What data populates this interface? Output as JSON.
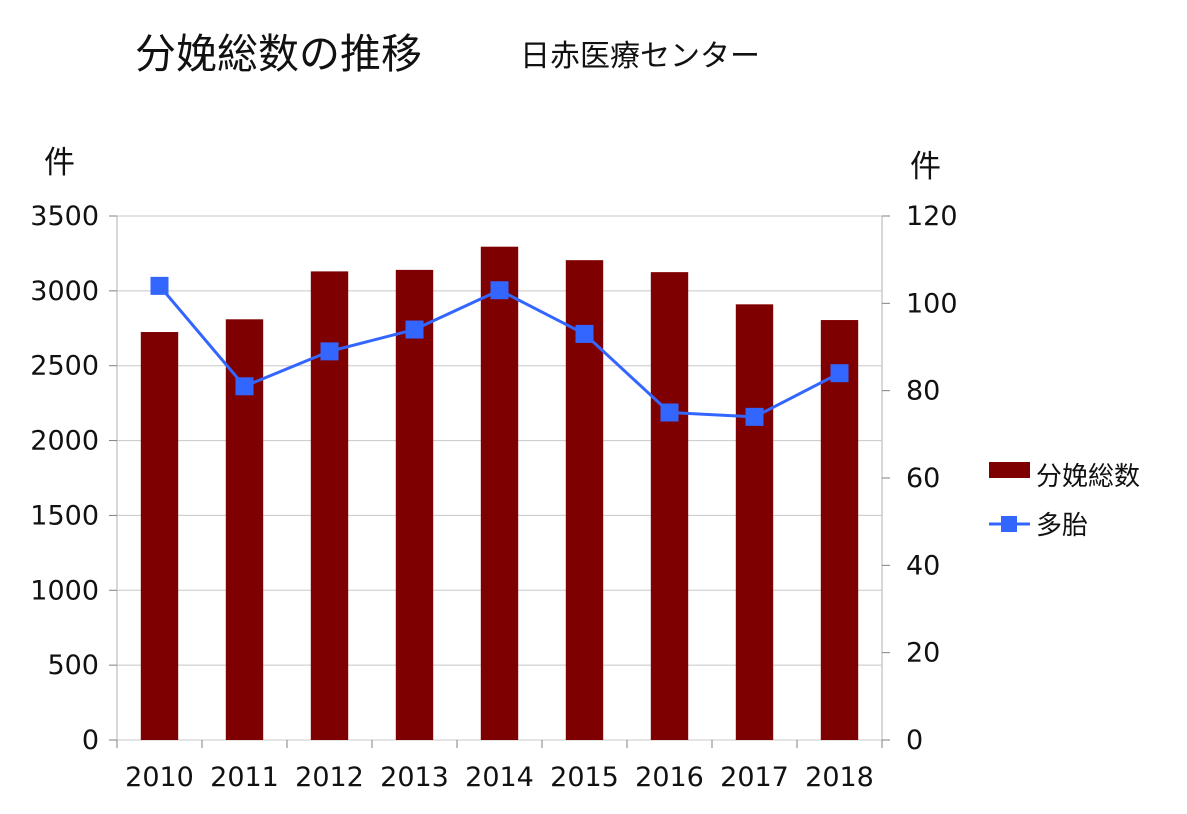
{
  "chart_data": {
    "type": "bar",
    "title": "分娩総数の推移",
    "subtitle": "日赤医療センター",
    "categories": [
      "2010",
      "2011",
      "2012",
      "2013",
      "2014",
      "2015",
      "2016",
      "2017",
      "2018"
    ],
    "series": [
      {
        "name": "分娩総数",
        "type": "bar",
        "axis": "left",
        "color": "#7f0000",
        "values": [
          2725,
          2810,
          3130,
          3140,
          3295,
          3205,
          3125,
          2910,
          2805
        ]
      },
      {
        "name": "多胎",
        "type": "line",
        "axis": "right",
        "color": "#3366ff",
        "marker": "square",
        "values": [
          104,
          81,
          89,
          94,
          103,
          93,
          75,
          74,
          84
        ]
      }
    ],
    "ylabel": "件",
    "ylim": [
      0,
      3500
    ],
    "yticks": [
      "3500",
      "3000",
      "2500",
      "2000",
      "1500",
      "1000",
      "500",
      "0"
    ],
    "y2label": "件",
    "y2lim": [
      0,
      120
    ],
    "y2ticks": [
      "120",
      "100",
      "80",
      "60",
      "40",
      "20",
      "0"
    ],
    "grid": true,
    "legend_position": "right"
  }
}
